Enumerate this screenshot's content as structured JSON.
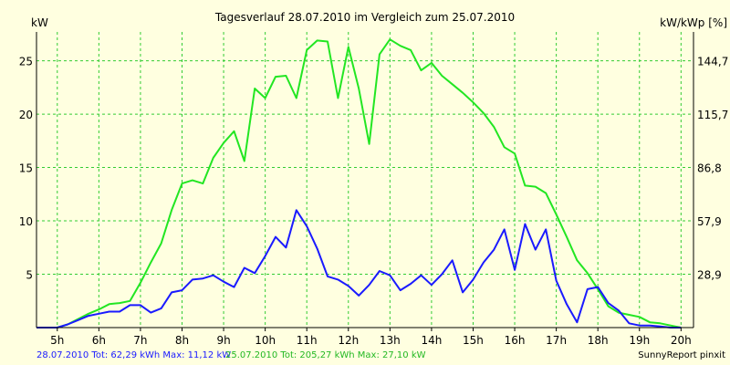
{
  "chart_data": {
    "type": "line",
    "title": "Tagesverlauf 28.07.2010 im Vergleich zum 25.07.2010",
    "y_left_label": "kW",
    "y_right_label": "kW/kWp [%]",
    "x_ticks": [
      "5h",
      "6h",
      "7h",
      "8h",
      "9h",
      "10h",
      "11h",
      "12h",
      "13h",
      "14h",
      "15h",
      "16h",
      "17h",
      "18h",
      "19h",
      "20h"
    ],
    "x_range": [
      4.5,
      20.3
    ],
    "y_left_ticks": [
      5,
      10,
      15,
      20,
      25
    ],
    "y_right_ticks": [
      "28,9",
      "57,9",
      "86,8",
      "115,7",
      "144,7"
    ],
    "ylim": [
      0,
      27.7
    ],
    "grid": true,
    "series": [
      {
        "name": "25.07.2010",
        "color": "#22e622",
        "x": [
          4.5,
          5.0,
          5.25,
          5.5,
          5.75,
          6.0,
          6.25,
          6.5,
          6.75,
          7.0,
          7.25,
          7.5,
          7.75,
          8.0,
          8.25,
          8.5,
          8.75,
          9.0,
          9.25,
          9.5,
          9.75,
          10.0,
          10.25,
          10.5,
          10.75,
          11.0,
          11.25,
          11.5,
          11.75,
          12.0,
          12.25,
          12.5,
          12.75,
          13.0,
          13.25,
          13.5,
          13.75,
          14.0,
          14.25,
          14.5,
          14.75,
          15.0,
          15.25,
          15.5,
          15.75,
          16.0,
          16.25,
          16.5,
          16.75,
          17.0,
          17.25,
          17.5,
          17.75,
          18.0,
          18.25,
          18.5,
          18.75,
          19.0,
          19.25,
          19.5,
          19.75,
          20.0
        ],
        "values": [
          0,
          0,
          0.3,
          0.8,
          1.3,
          1.7,
          2.2,
          2.3,
          2.5,
          4.2,
          6.1,
          7.9,
          11.0,
          13.5,
          13.8,
          13.5,
          15.9,
          17.3,
          18.4,
          15.6,
          22.4,
          21.5,
          23.5,
          23.6,
          21.5,
          26.0,
          26.9,
          26.8,
          21.5,
          26.3,
          22.4,
          17.2,
          25.6,
          27.0,
          26.4,
          26.0,
          24.1,
          24.8,
          23.6,
          22.8,
          22.0,
          21.1,
          20.1,
          18.8,
          16.9,
          16.3,
          13.3,
          13.2,
          12.6,
          10.6,
          8.5,
          6.3,
          5.1,
          3.6,
          2.0,
          1.4,
          1.2,
          1.0,
          0.5,
          0.4,
          0.2,
          0
        ]
      },
      {
        "name": "28.07.2010",
        "color": "#1a1aff",
        "x": [
          4.5,
          5.0,
          5.25,
          5.5,
          5.75,
          6.0,
          6.25,
          6.5,
          6.75,
          7.0,
          7.25,
          7.5,
          7.75,
          8.0,
          8.25,
          8.5,
          8.75,
          9.0,
          9.25,
          9.5,
          9.75,
          10.0,
          10.25,
          10.5,
          10.75,
          11.0,
          11.25,
          11.5,
          11.75,
          12.0,
          12.25,
          12.5,
          12.75,
          13.0,
          13.25,
          13.5,
          13.75,
          14.0,
          14.25,
          14.5,
          14.75,
          15.0,
          15.25,
          15.5,
          15.75,
          16.0,
          16.25,
          16.5,
          16.75,
          17.0,
          17.25,
          17.5,
          17.75,
          18.0,
          18.25,
          18.5,
          18.75,
          19.0,
          19.25,
          19.5,
          19.75,
          20.0
        ],
        "values": [
          0,
          0,
          0.3,
          0.7,
          1.1,
          1.3,
          1.5,
          1.5,
          2.1,
          2.1,
          1.4,
          1.8,
          3.3,
          3.5,
          4.5,
          4.6,
          4.9,
          4.3,
          3.8,
          5.6,
          5.1,
          6.7,
          8.5,
          7.5,
          11.0,
          9.5,
          7.4,
          4.8,
          4.5,
          3.9,
          3.0,
          4.0,
          5.3,
          4.9,
          3.5,
          4.1,
          4.9,
          4.0,
          5.0,
          6.3,
          3.3,
          4.5,
          6.1,
          7.3,
          9.2,
          5.4,
          9.7,
          7.3,
          9.2,
          4.4,
          2.2,
          0.5,
          3.6,
          3.8,
          2.3,
          1.6,
          0.4,
          0.2,
          0.2,
          0.1,
          0,
          0
        ]
      }
    ]
  },
  "footer": {
    "series_a_summary": "28.07.2010 Tot: 62,29 kWh Max: 11,12 kW",
    "series_b_summary": "25.07.2010 Tot: 205,27 kWh Max: 27,10 kW",
    "credit": "SunnyReport pinxit"
  },
  "colors": {
    "background": "#ffffe0",
    "grid": "#33cc33",
    "axis": "#000000"
  }
}
